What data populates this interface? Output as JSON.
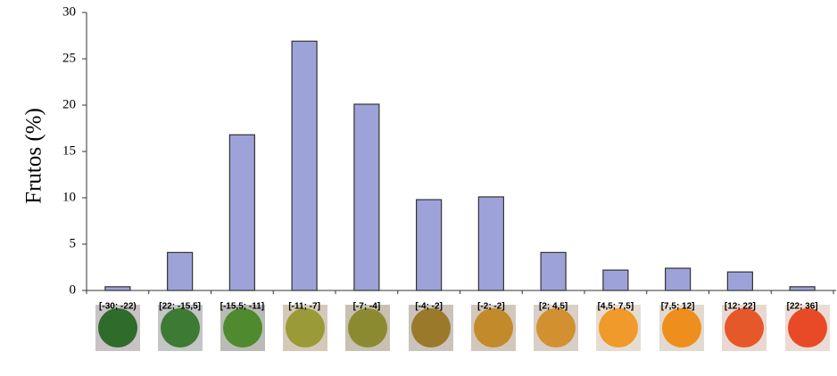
{
  "chart_data": {
    "type": "bar",
    "y_label": "Frutos (%)",
    "categories": [
      "[-30; -22)",
      "[22; -15,5]",
      "[-15,5; -11]",
      "[-11; -7]",
      "[-7; -4]",
      "[-4; -2]",
      "[-2; -2]",
      "[2; 4,5]",
      "[4,5; 7,5]",
      "[7,5; 12]",
      "[12; 22]",
      "[22; 36]"
    ],
    "values": [
      0.4,
      4.1,
      16.8,
      26.9,
      20.1,
      9.8,
      10.1,
      4.1,
      2.2,
      2.4,
      2.0,
      0.4
    ],
    "color": "#9da3d8",
    "ylim": [
      0,
      30
    ],
    "yticks": [
      0,
      5,
      10,
      15,
      20,
      25,
      30
    ],
    "grid": false
  }
}
